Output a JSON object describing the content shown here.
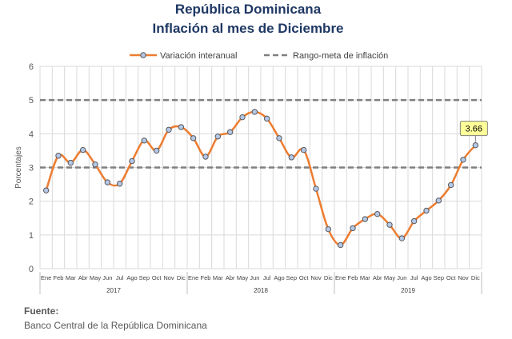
{
  "header": {
    "title": "República Dominicana",
    "subtitle": "Inflación al mes de Diciembre"
  },
  "footer": {
    "source_label": "Fuente:",
    "source_text": "Banco Central de la República Dominicana"
  },
  "chart_data": {
    "type": "line",
    "title": "República Dominicana",
    "subtitle": "Inflación al mes de Diciembre",
    "ylabel": "Porcentajes",
    "xlabel": "",
    "ylim": [
      0,
      6
    ],
    "yticks": [
      0,
      1,
      2,
      3,
      4,
      5,
      6
    ],
    "grid": true,
    "legend_position": "top",
    "categories": [
      "Ene",
      "Feb",
      "Mar",
      "Abr",
      "May",
      "Jun",
      "Jul",
      "Ago",
      "Sep",
      "Oct",
      "Nov",
      "Dic",
      "Ene",
      "Feb",
      "Mar",
      "Abr",
      "May",
      "Jun",
      "Jul",
      "Ago",
      "Sep",
      "Oct",
      "Nov",
      "Dic",
      "Ene",
      "Feb",
      "Mar",
      "Abr",
      "May",
      "Jun",
      "Jul",
      "Ago",
      "Sep",
      "Oct",
      "Nov",
      "Dic"
    ],
    "years": [
      {
        "label": "2017",
        "start": 0,
        "end": 11
      },
      {
        "label": "2018",
        "start": 12,
        "end": 23
      },
      {
        "label": "2019",
        "start": 24,
        "end": 35
      }
    ],
    "series": [
      {
        "name": "Variación interanual",
        "color": "#ed7d31",
        "marker_color": "#b4c7e7",
        "values": [
          2.32,
          3.35,
          3.14,
          3.52,
          3.09,
          2.56,
          2.52,
          3.19,
          3.8,
          3.5,
          4.12,
          4.2,
          3.87,
          3.32,
          3.92,
          4.05,
          4.49,
          4.65,
          4.45,
          3.87,
          3.3,
          3.52,
          2.37,
          1.17,
          0.7,
          1.2,
          1.47,
          1.62,
          1.3,
          0.9,
          1.41,
          1.72,
          2.02,
          2.48,
          3.23,
          3.66
        ]
      },
      {
        "name": "Rango-meta de inflación",
        "color": "#7f7f7f",
        "style": "dashed",
        "hlines": [
          3,
          5
        ]
      }
    ],
    "annotations": [
      {
        "text": "3.66",
        "index": 35,
        "value": 3.66,
        "color": "#ffff99"
      }
    ]
  }
}
